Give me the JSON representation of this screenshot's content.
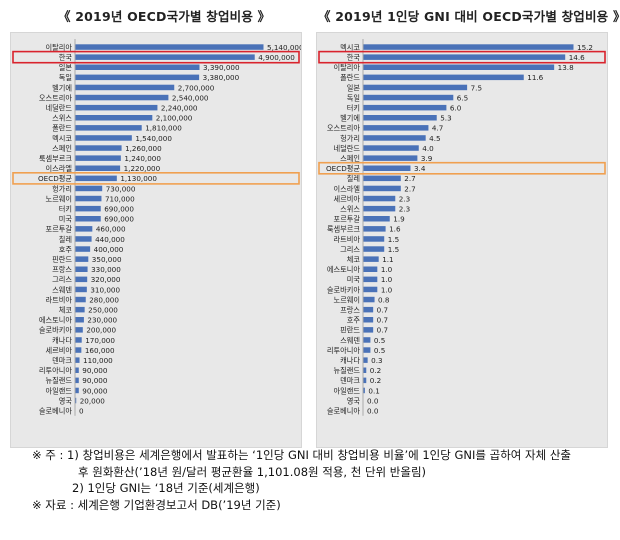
{
  "titles": {
    "left": "《 2019년 OECD국가별 창업비용 》",
    "right": "《 2019년 1인당 GNI 대비 OECD국가별 창업비용 》"
  },
  "highlight": {
    "korea_color": "#d9232d",
    "oecd_color": "#f0a050",
    "bar_color": "#4a72b8"
  },
  "notes": {
    "line1": "※ 주 : 1) 창업비용은 세계은행에서 발표하는 ‘1인당 GNI 대비 창업비용 비율’에 1인당 GNI를 곱하여 자체 산출",
    "line2": "후 원화환산(’18년 원/달러 평균환율 1,101.08원 적용, 천 단위 반올림)",
    "line3": "2) 1인당 GNI는 ‘18년 기준(세계은행)",
    "line4": "※ 자료 : 세계은행 기업환경보고서 DB(’19년 기준)"
  },
  "chart_data": [
    {
      "type": "bar",
      "orientation": "horizontal",
      "title": "《 2019년 OECD국가별 창업비용 》",
      "categories": [
        "이탈리아",
        "한국",
        "일본",
        "독일",
        "벨기에",
        "오스트리아",
        "네덜란드",
        "스위스",
        "폴란드",
        "멕시코",
        "스페인",
        "룩셈부르크",
        "이스라엘",
        "OECD평균",
        "헝가리",
        "노르웨이",
        "터키",
        "미국",
        "포르투갈",
        "칠레",
        "호주",
        "핀란드",
        "프랑스",
        "그리스",
        "스웨덴",
        "라트비아",
        "체코",
        "에스토니아",
        "슬로바키아",
        "캐나다",
        "세르비아",
        "덴마크",
        "리투아니아",
        "뉴질랜드",
        "아일랜드",
        "영국",
        "슬로베니아"
      ],
      "values": [
        5140000,
        4900000,
        3390000,
        3380000,
        2700000,
        2540000,
        2240000,
        2100000,
        1810000,
        1540000,
        1260000,
        1240000,
        1220000,
        1130000,
        730000,
        710000,
        690000,
        690000,
        460000,
        440000,
        400000,
        350000,
        330000,
        320000,
        310000,
        280000,
        250000,
        230000,
        200000,
        170000,
        160000,
        110000,
        90000,
        90000,
        90000,
        20000,
        0
      ],
      "labels": [
        "5,140,000",
        "4,900,000",
        "3,390,000",
        "3,380,000",
        "2,700,000",
        "2,540,000",
        "2,240,000",
        "2,100,000",
        "1,810,000",
        "1,540,000",
        "1,260,000",
        "1,240,000",
        "1,220,000",
        "1,130,000",
        "730,000",
        "710,000",
        "690,000",
        "690,000",
        "460,000",
        "440,000",
        "400,000",
        "350,000",
        "330,000",
        "320,000",
        "310,000",
        "280,000",
        "250,000",
        "230,000",
        "200,000",
        "170,000",
        "160,000",
        "110,000",
        "90,000",
        "90,000",
        "90,000",
        "20,000",
        "0"
      ],
      "highlight_korea": "한국",
      "highlight_avg": "OECD평균",
      "xlim": [
        0,
        5140000
      ]
    },
    {
      "type": "bar",
      "orientation": "horizontal",
      "title": "《 2019년 1인당 GNI 대비 OECD국가별 창업비용 》",
      "categories": [
        "멕시코",
        "한국",
        "이탈리아",
        "폴란드",
        "일본",
        "독일",
        "터키",
        "벨기에",
        "오스트리아",
        "헝가리",
        "네덜란드",
        "스페인",
        "OECD평균",
        "칠레",
        "이스라엘",
        "세르비아",
        "스위스",
        "포르투갈",
        "룩셈부르크",
        "라트비아",
        "그리스",
        "체코",
        "에스토니아",
        "미국",
        "슬로바키아",
        "노르웨이",
        "프랑스",
        "호주",
        "핀란드",
        "스웨덴",
        "리투아니아",
        "캐나다",
        "뉴질랜드",
        "덴마크",
        "아일랜드",
        "영국",
        "슬로베니아"
      ],
      "values": [
        15.2,
        14.6,
        13.8,
        11.6,
        7.5,
        6.5,
        6.0,
        5.3,
        4.7,
        4.5,
        4.0,
        3.9,
        3.4,
        2.7,
        2.7,
        2.3,
        2.3,
        1.9,
        1.6,
        1.5,
        1.5,
        1.1,
        1.0,
        1.0,
        1.0,
        0.8,
        0.7,
        0.7,
        0.7,
        0.5,
        0.5,
        0.3,
        0.2,
        0.2,
        0.1,
        0.0,
        0.0
      ],
      "labels": [
        "15.2",
        "14.6",
        "13.8",
        "11.6",
        "7.5",
        "6.5",
        "6.0",
        "5.3",
        "4.7",
        "4.5",
        "4.0",
        "3.9",
        "3.4",
        "2.7",
        "2.7",
        "2.3",
        "2.3",
        "1.9",
        "1.6",
        "1.5",
        "1.5",
        "1.1",
        "1.0",
        "1.0",
        "1.0",
        "0.8",
        "0.7",
        "0.7",
        "0.7",
        "0.5",
        "0.5",
        "0.3",
        "0.2",
        "0.2",
        "0.1",
        "0.0",
        "0.0"
      ],
      "highlight_korea": "한국",
      "highlight_avg": "OECD평균",
      "xlim": [
        0,
        15.2
      ]
    }
  ]
}
